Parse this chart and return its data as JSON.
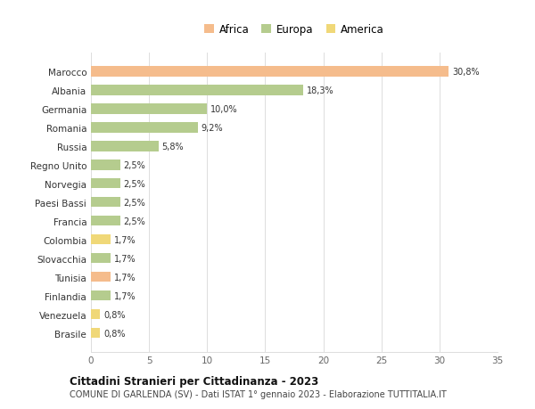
{
  "countries": [
    "Marocco",
    "Albania",
    "Germania",
    "Romania",
    "Russia",
    "Regno Unito",
    "Norvegia",
    "Paesi Bassi",
    "Francia",
    "Colombia",
    "Slovacchia",
    "Tunisia",
    "Finlandia",
    "Venezuela",
    "Brasile"
  ],
  "values": [
    30.8,
    18.3,
    10.0,
    9.2,
    5.8,
    2.5,
    2.5,
    2.5,
    2.5,
    1.7,
    1.7,
    1.7,
    1.7,
    0.8,
    0.8
  ],
  "labels": [
    "30,8%",
    "18,3%",
    "10,0%",
    "9,2%",
    "5,8%",
    "2,5%",
    "2,5%",
    "2,5%",
    "2,5%",
    "1,7%",
    "1,7%",
    "1,7%",
    "1,7%",
    "0,8%",
    "0,8%"
  ],
  "continents": [
    "Africa",
    "Europa",
    "Europa",
    "Europa",
    "Europa",
    "Europa",
    "Europa",
    "Europa",
    "Europa",
    "America",
    "Europa",
    "Africa",
    "Europa",
    "America",
    "America"
  ],
  "colors": {
    "Africa": "#F5BC8C",
    "Europa": "#B5CC8E",
    "America": "#F0D878"
  },
  "xlim": [
    0,
    35
  ],
  "xticks": [
    0,
    5,
    10,
    15,
    20,
    25,
    30,
    35
  ],
  "title": "Cittadini Stranieri per Cittadinanza - 2023",
  "subtitle": "COMUNE DI GARLENDA (SV) - Dati ISTAT 1° gennaio 2023 - Elaborazione TUTTITALIA.IT",
  "bg_color": "#ffffff",
  "grid_color": "#dddddd"
}
